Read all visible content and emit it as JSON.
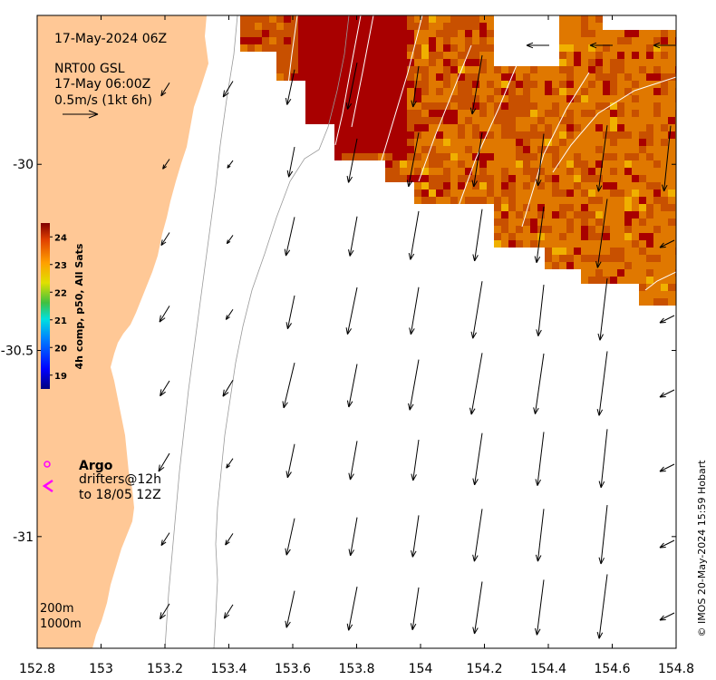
{
  "map": {
    "header_date": "17-May-2024 06Z",
    "product_line1": "NRT00 GSL",
    "product_line2": "17-May 06:00Z",
    "scale_label": "0.5m/s (1kt 6h)",
    "contour_labels": [
      "200m",
      "1000m"
    ],
    "x_ticks": [
      "152.8",
      "153",
      "153.2",
      "153.4",
      "153.6",
      "153.8",
      "154",
      "154.2",
      "154.4",
      "154.6",
      "154.8"
    ],
    "y_ticks": [
      "-30",
      "-30.5",
      "-31"
    ],
    "credit": "© IMOS 20-May-2024 15:59 Hobart",
    "lon_range": [
      152.8,
      154.8
    ],
    "lat_range": [
      -31.3,
      -29.6
    ]
  },
  "colorbar": {
    "title": "4h comp, p50, All Sats",
    "ticks": [
      "19",
      "20",
      "21",
      "22",
      "23",
      "24"
    ],
    "range": [
      18.5,
      24.5
    ],
    "colors": [
      "#00007f",
      "#0000ff",
      "#007fff",
      "#00ffff",
      "#7fff7f",
      "#ffff00",
      "#ff7f00",
      "#ff0000",
      "#7f0000"
    ]
  },
  "legend": {
    "argo_label": "Argo",
    "drifters_line1": "drifters@12h",
    "drifters_line2": "to 18/05 12Z",
    "argo_color": "#ff00ff",
    "drifter_color": "#ff00ff"
  },
  "colors": {
    "land": "#ffc896",
    "sst_hot": "#a80000",
    "sst_warm": "#c85000",
    "sst_mid": "#e07800"
  }
}
